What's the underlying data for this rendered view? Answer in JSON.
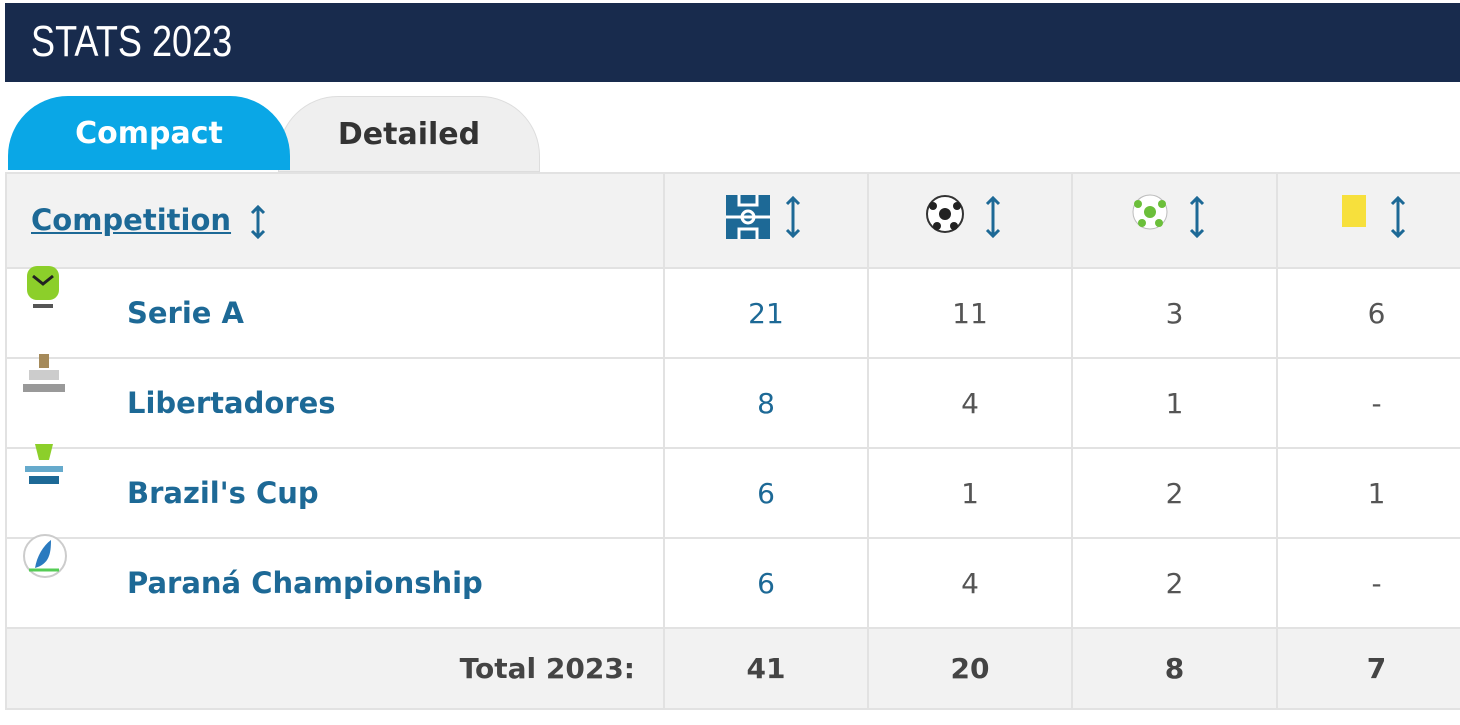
{
  "header": {
    "title": "STATS 2023"
  },
  "tabs": [
    "Compact",
    "Detailed"
  ],
  "table": {
    "header": {
      "competition": "Competition"
    },
    "rows": [
      [
        "Serie A",
        21,
        11,
        3,
        6
      ],
      [
        "Libertadores",
        8,
        4,
        1,
        "-"
      ],
      [
        "Brazil's Cup",
        6,
        1,
        2,
        1
      ],
      [
        "Paraná Championship",
        6,
        4,
        2,
        "-"
      ]
    ],
    "total": [
      "Total 2023:",
      41,
      20,
      8,
      7
    ]
  }
}
